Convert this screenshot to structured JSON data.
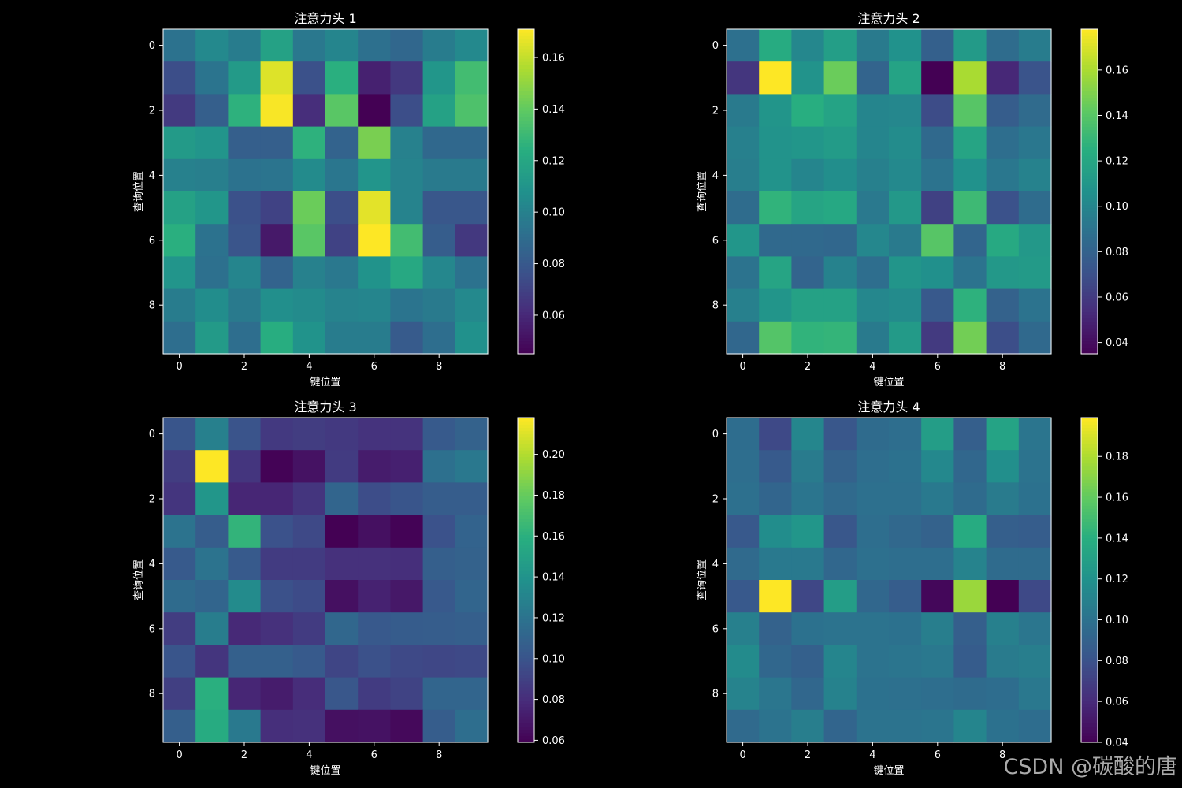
{
  "figure": {
    "background": "#000000",
    "text_color": "#ffffff",
    "watermark": "CSDN @碳酸的唐"
  },
  "chart_data": [
    {
      "type": "heatmap",
      "title": "注意力头 1",
      "xlabel": "键位置",
      "ylabel": "查询位置",
      "x_ticks": [
        "0",
        "2",
        "4",
        "6",
        "8"
      ],
      "y_ticks": [
        "0",
        "2",
        "4",
        "6",
        "8"
      ],
      "colormap": "viridis",
      "colorbar": {
        "vmin": 0.045,
        "vmax": 0.171,
        "ticks": [
          0.06,
          0.08,
          0.1,
          0.12,
          0.14,
          0.16
        ],
        "tick_labels": [
          "0.06",
          "0.08",
          "0.10",
          "0.12",
          "0.14",
          "0.16"
        ]
      },
      "values": [
        [
          0.093,
          0.104,
          0.098,
          0.117,
          0.096,
          0.102,
          0.092,
          0.087,
          0.098,
          0.104
        ],
        [
          0.075,
          0.094,
          0.113,
          0.165,
          0.076,
          0.125,
          0.057,
          0.066,
          0.111,
          0.132
        ],
        [
          0.067,
          0.083,
          0.126,
          0.17,
          0.062,
          0.138,
          0.045,
          0.075,
          0.117,
          0.135
        ],
        [
          0.113,
          0.11,
          0.083,
          0.083,
          0.126,
          0.085,
          0.145,
          0.1,
          0.088,
          0.088
        ],
        [
          0.1,
          0.099,
          0.093,
          0.094,
          0.105,
          0.095,
          0.11,
          0.101,
          0.097,
          0.097
        ],
        [
          0.117,
          0.111,
          0.076,
          0.07,
          0.142,
          0.075,
          0.166,
          0.101,
          0.079,
          0.079
        ],
        [
          0.125,
          0.093,
          0.078,
          0.054,
          0.138,
          0.07,
          0.171,
          0.132,
          0.082,
          0.066
        ],
        [
          0.11,
          0.092,
          0.102,
          0.085,
          0.1,
          0.096,
          0.109,
          0.121,
          0.103,
          0.093
        ],
        [
          0.098,
          0.106,
          0.097,
          0.107,
          0.105,
          0.101,
          0.102,
          0.094,
          0.097,
          0.104
        ],
        [
          0.091,
          0.113,
          0.091,
          0.124,
          0.109,
          0.098,
          0.098,
          0.081,
          0.091,
          0.108
        ]
      ]
    },
    {
      "type": "heatmap",
      "title": "注意力头 2",
      "xlabel": "键位置",
      "ylabel": "查询位置",
      "x_ticks": [
        "0",
        "2",
        "4",
        "6",
        "8"
      ],
      "y_ticks": [
        "0",
        "2",
        "4",
        "6",
        "8"
      ],
      "colormap": "viridis",
      "colorbar": {
        "vmin": 0.035,
        "vmax": 0.178,
        "ticks": [
          0.04,
          0.06,
          0.08,
          0.1,
          0.12,
          0.14,
          0.16
        ],
        "tick_labels": [
          "0.04",
          "0.06",
          "0.08",
          "0.10",
          "0.12",
          "0.14",
          "0.16"
        ]
      },
      "values": [
        [
          0.088,
          0.123,
          0.101,
          0.115,
          0.094,
          0.107,
          0.079,
          0.112,
          0.086,
          0.095
        ],
        [
          0.058,
          0.178,
          0.108,
          0.145,
          0.081,
          0.118,
          0.035,
          0.16,
          0.052,
          0.072
        ],
        [
          0.094,
          0.109,
          0.125,
          0.118,
          0.1,
          0.101,
          0.068,
          0.14,
          0.077,
          0.085
        ],
        [
          0.097,
          0.108,
          0.11,
          0.113,
          0.1,
          0.104,
          0.084,
          0.119,
          0.087,
          0.092
        ],
        [
          0.096,
          0.108,
          0.1,
          0.105,
          0.097,
          0.102,
          0.09,
          0.107,
          0.092,
          0.098
        ],
        [
          0.086,
          0.128,
          0.119,
          0.121,
          0.093,
          0.111,
          0.063,
          0.132,
          0.071,
          0.086
        ],
        [
          0.11,
          0.084,
          0.084,
          0.083,
          0.101,
          0.094,
          0.14,
          0.082,
          0.122,
          0.111
        ],
        [
          0.09,
          0.119,
          0.081,
          0.098,
          0.087,
          0.109,
          0.106,
          0.09,
          0.111,
          0.112
        ],
        [
          0.097,
          0.109,
          0.117,
          0.117,
          0.101,
          0.103,
          0.075,
          0.127,
          0.08,
          0.09
        ],
        [
          0.083,
          0.139,
          0.128,
          0.129,
          0.094,
          0.112,
          0.06,
          0.147,
          0.069,
          0.084
        ]
      ]
    },
    {
      "type": "heatmap",
      "title": "注意力头 3",
      "xlabel": "键位置",
      "ylabel": "查询位置",
      "x_ticks": [
        "0",
        "2",
        "4",
        "6",
        "8"
      ],
      "y_ticks": [
        "0",
        "2",
        "4",
        "6",
        "8"
      ],
      "colormap": "viridis",
      "colorbar": {
        "vmin": 0.059,
        "vmax": 0.218,
        "ticks": [
          0.06,
          0.08,
          0.1,
          0.12,
          0.14,
          0.16,
          0.18,
          0.2
        ],
        "tick_labels": [
          "0.06",
          "0.08",
          "0.10",
          "0.12",
          "0.14",
          "0.16",
          "0.18",
          "0.20"
        ]
      },
      "values": [
        [
          0.101,
          0.128,
          0.1,
          0.086,
          0.088,
          0.086,
          0.083,
          0.083,
          0.104,
          0.109
        ],
        [
          0.088,
          0.218,
          0.084,
          0.06,
          0.067,
          0.087,
          0.072,
          0.074,
          0.118,
          0.123
        ],
        [
          0.084,
          0.142,
          0.077,
          0.077,
          0.084,
          0.111,
          0.096,
          0.101,
          0.106,
          0.106
        ],
        [
          0.12,
          0.106,
          0.163,
          0.099,
          0.094,
          0.059,
          0.066,
          0.06,
          0.099,
          0.11
        ],
        [
          0.104,
          0.12,
          0.104,
          0.087,
          0.087,
          0.082,
          0.082,
          0.081,
          0.107,
          0.109
        ],
        [
          0.115,
          0.111,
          0.135,
          0.098,
          0.095,
          0.066,
          0.075,
          0.07,
          0.103,
          0.111
        ],
        [
          0.088,
          0.126,
          0.078,
          0.082,
          0.087,
          0.112,
          0.103,
          0.105,
          0.106,
          0.107
        ],
        [
          0.101,
          0.084,
          0.108,
          0.108,
          0.104,
          0.092,
          0.098,
          0.094,
          0.093,
          0.094
        ],
        [
          0.089,
          0.16,
          0.077,
          0.072,
          0.08,
          0.102,
          0.087,
          0.091,
          0.111,
          0.111
        ],
        [
          0.107,
          0.157,
          0.124,
          0.081,
          0.082,
          0.066,
          0.067,
          0.063,
          0.106,
          0.117
        ]
      ]
    },
    {
      "type": "heatmap",
      "title": "注意力头 4",
      "xlabel": "键位置",
      "ylabel": "查询位置",
      "x_ticks": [
        "0",
        "2",
        "4",
        "6",
        "8"
      ],
      "y_ticks": [
        "0",
        "2",
        "4",
        "6",
        "8"
      ],
      "colormap": "viridis",
      "colorbar": {
        "vmin": 0.04,
        "vmax": 0.199,
        "ticks": [
          0.04,
          0.06,
          0.08,
          0.1,
          0.12,
          0.14,
          0.16,
          0.18
        ],
        "tick_labels": [
          "0.04",
          "0.06",
          "0.08",
          "0.10",
          "0.12",
          "0.14",
          "0.16",
          "0.18"
        ]
      },
      "values": [
        [
          0.097,
          0.075,
          0.113,
          0.083,
          0.096,
          0.098,
          0.128,
          0.088,
          0.132,
          0.102
        ],
        [
          0.098,
          0.085,
          0.106,
          0.09,
          0.098,
          0.1,
          0.114,
          0.093,
          0.118,
          0.101
        ],
        [
          0.099,
          0.092,
          0.102,
          0.095,
          0.099,
          0.099,
          0.105,
          0.096,
          0.106,
          0.1
        ],
        [
          0.084,
          0.117,
          0.123,
          0.083,
          0.098,
          0.094,
          0.09,
          0.138,
          0.088,
          0.087
        ],
        [
          0.095,
          0.105,
          0.105,
          0.093,
          0.099,
          0.098,
          0.098,
          0.111,
          0.096,
          0.096
        ],
        [
          0.084,
          0.199,
          0.074,
          0.128,
          0.093,
          0.087,
          0.043,
          0.175,
          0.04,
          0.075
        ],
        [
          0.109,
          0.09,
          0.1,
          0.101,
          0.101,
          0.1,
          0.108,
          0.088,
          0.109,
          0.103
        ],
        [
          0.116,
          0.093,
          0.089,
          0.112,
          0.101,
          0.102,
          0.104,
          0.086,
          0.106,
          0.108
        ],
        [
          0.111,
          0.103,
          0.093,
          0.11,
          0.1,
          0.099,
          0.098,
          0.096,
          0.097,
          0.104
        ],
        [
          0.095,
          0.101,
          0.108,
          0.092,
          0.101,
          0.101,
          0.102,
          0.112,
          0.1,
          0.097
        ]
      ]
    }
  ]
}
